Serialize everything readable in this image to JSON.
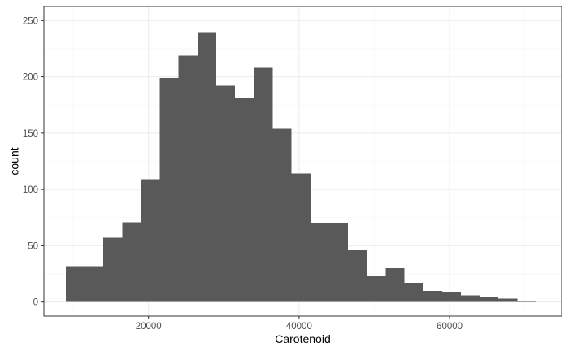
{
  "chart_data": {
    "type": "bar",
    "subtype": "histogram",
    "xlabel": "Carotenoid",
    "ylabel": "count",
    "xlim": [
      6100,
      74900
    ],
    "ylim": [
      -12.5,
      262.5
    ],
    "x_ticks": [
      {
        "value": 20000,
        "label": "20000"
      },
      {
        "value": 40000,
        "label": "40000"
      },
      {
        "value": 60000,
        "label": "60000"
      }
    ],
    "y_ticks": [
      {
        "value": 0,
        "label": "0"
      },
      {
        "value": 50,
        "label": "50"
      },
      {
        "value": 100,
        "label": "100"
      },
      {
        "value": 150,
        "label": "150"
      },
      {
        "value": 200,
        "label": "200"
      },
      {
        "value": 250,
        "label": "250"
      }
    ],
    "x_minor_gridlines": [
      10000,
      30000,
      50000,
      70000
    ],
    "y_minor_gridlines": [
      25,
      75,
      125,
      175,
      225
    ],
    "bins": [
      {
        "x0": 9000,
        "x1": 11500,
        "count": 32
      },
      {
        "x0": 11500,
        "x1": 14000,
        "count": 32
      },
      {
        "x0": 14000,
        "x1": 16500,
        "count": 57
      },
      {
        "x0": 16500,
        "x1": 19000,
        "count": 71
      },
      {
        "x0": 19000,
        "x1": 21500,
        "count": 109
      },
      {
        "x0": 21500,
        "x1": 24000,
        "count": 199
      },
      {
        "x0": 24000,
        "x1": 26500,
        "count": 219
      },
      {
        "x0": 26500,
        "x1": 29000,
        "count": 239
      },
      {
        "x0": 29000,
        "x1": 31500,
        "count": 192
      },
      {
        "x0": 31500,
        "x1": 34000,
        "count": 181
      },
      {
        "x0": 34000,
        "x1": 36500,
        "count": 208
      },
      {
        "x0": 36500,
        "x1": 39000,
        "count": 154
      },
      {
        "x0": 39000,
        "x1": 41500,
        "count": 114
      },
      {
        "x0": 41500,
        "x1": 44000,
        "count": 70
      },
      {
        "x0": 44000,
        "x1": 46500,
        "count": 70
      },
      {
        "x0": 46500,
        "x1": 49000,
        "count": 46
      },
      {
        "x0": 49000,
        "x1": 51500,
        "count": 23
      },
      {
        "x0": 51500,
        "x1": 54000,
        "count": 30
      },
      {
        "x0": 54000,
        "x1": 56500,
        "count": 17
      },
      {
        "x0": 56500,
        "x1": 59000,
        "count": 10
      },
      {
        "x0": 59000,
        "x1": 61500,
        "count": 9
      },
      {
        "x0": 61500,
        "x1": 64000,
        "count": 6
      },
      {
        "x0": 64000,
        "x1": 66500,
        "count": 5
      },
      {
        "x0": 66500,
        "x1": 69000,
        "count": 3
      },
      {
        "x0": 69000,
        "x1": 71500,
        "count": 1
      }
    ],
    "grid": true,
    "colors": {
      "bar": "#595959",
      "grid_major": "#ebebeb",
      "grid_minor": "#f5f5f5",
      "panel_border": "#333333",
      "tick_label": "#4d4d4d",
      "axis_title": "#000000"
    }
  }
}
